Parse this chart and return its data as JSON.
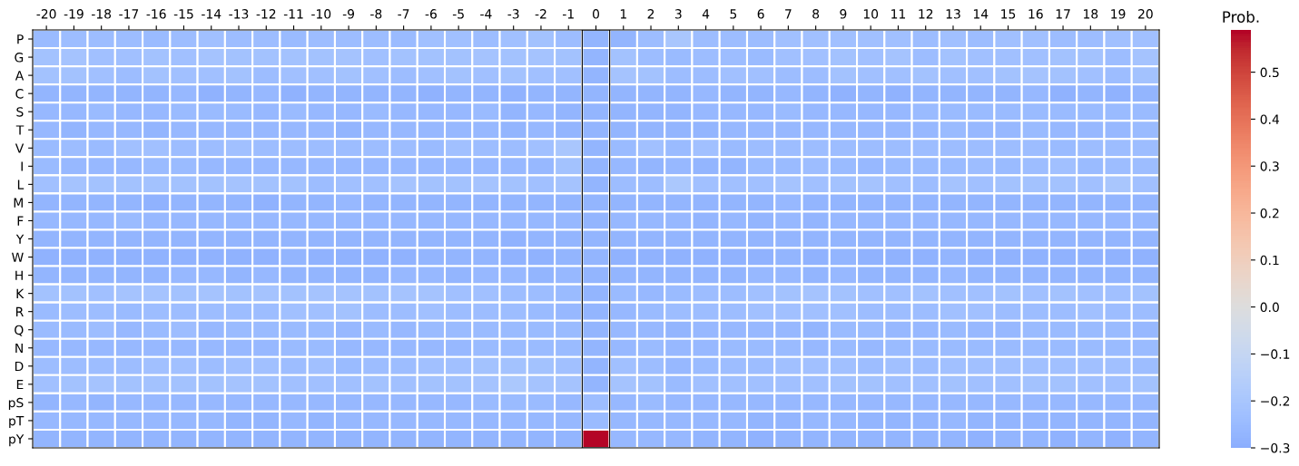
{
  "chart_data": {
    "type": "heatmap",
    "clabel": "Prob.",
    "categories": [
      "-20",
      "-19",
      "-18",
      "-17",
      "-16",
      "-15",
      "-14",
      "-13",
      "-12",
      "-11",
      "-10",
      "-9",
      "-8",
      "-7",
      "-6",
      "-5",
      "-4",
      "-3",
      "-2",
      "-1",
      "0",
      "1",
      "2",
      "3",
      "4",
      "5",
      "6",
      "7",
      "8",
      "9",
      "10",
      "11",
      "12",
      "13",
      "14",
      "15",
      "16",
      "17",
      "18",
      "19",
      "20"
    ],
    "y_categories": [
      "P",
      "G",
      "A",
      "C",
      "S",
      "T",
      "V",
      "I",
      "L",
      "M",
      "F",
      "Y",
      "W",
      "H",
      "K",
      "R",
      "Q",
      "N",
      "D",
      "E",
      "pS",
      "pT",
      "pY"
    ],
    "clim": [
      -0.3,
      0.59
    ],
    "cticks": [
      {
        "value": -0.3,
        "label": "−0.3"
      },
      {
        "value": -0.2,
        "label": "−0.2"
      },
      {
        "value": -0.1,
        "label": "−0.1"
      },
      {
        "value": 0.0,
        "label": "0.0"
      },
      0.1,
      0.2,
      0.3,
      0.4,
      0.5
    ],
    "cells": [
      [
        -0.25,
        -0.24,
        -0.24,
        -0.24,
        -0.25,
        -0.24,
        -0.23,
        -0.24,
        -0.24,
        -0.25,
        -0.24,
        -0.24,
        -0.24,
        -0.25,
        -0.23,
        -0.23,
        -0.24,
        -0.23,
        -0.22,
        -0.24,
        -0.27,
        -0.27,
        -0.24,
        -0.2,
        -0.24,
        -0.24,
        -0.24,
        -0.23,
        -0.23,
        -0.23,
        -0.23,
        -0.23,
        -0.24,
        -0.23,
        -0.24,
        -0.23,
        -0.23,
        -0.24,
        -0.24,
        -0.23,
        -0.23
      ],
      [
        -0.22,
        -0.21,
        -0.23,
        -0.23,
        -0.22,
        -0.23,
        -0.21,
        -0.22,
        -0.22,
        -0.22,
        -0.22,
        -0.21,
        -0.23,
        -0.22,
        -0.22,
        -0.22,
        -0.21,
        -0.22,
        -0.21,
        -0.22,
        -0.27,
        -0.22,
        -0.24,
        -0.25,
        -0.24,
        -0.24,
        -0.25,
        -0.23,
        -0.23,
        -0.22,
        -0.23,
        -0.21,
        -0.24,
        -0.22,
        -0.23,
        -0.23,
        -0.23,
        -0.22,
        -0.22,
        -0.24,
        -0.21
      ],
      [
        -0.22,
        -0.22,
        -0.23,
        -0.24,
        -0.22,
        -0.23,
        -0.23,
        -0.22,
        -0.24,
        -0.23,
        -0.23,
        -0.22,
        -0.23,
        -0.24,
        -0.23,
        -0.22,
        -0.23,
        -0.22,
        -0.23,
        -0.23,
        -0.27,
        -0.21,
        -0.22,
        -0.24,
        -0.24,
        -0.23,
        -0.23,
        -0.24,
        -0.24,
        -0.22,
        -0.23,
        -0.23,
        -0.22,
        -0.23,
        -0.23,
        -0.22,
        -0.21,
        -0.22,
        -0.23,
        -0.24,
        -0.22
      ],
      [
        -0.27,
        -0.27,
        -0.27,
        -0.27,
        -0.27,
        -0.26,
        -0.28,
        -0.27,
        -0.26,
        -0.28,
        -0.27,
        -0.27,
        -0.27,
        -0.27,
        -0.28,
        -0.27,
        -0.27,
        -0.28,
        -0.27,
        -0.27,
        -0.27,
        -0.27,
        -0.27,
        -0.27,
        -0.26,
        -0.27,
        -0.27,
        -0.26,
        -0.27,
        -0.28,
        -0.27,
        -0.28,
        -0.27,
        -0.27,
        -0.27,
        -0.27,
        -0.26,
        -0.28,
        -0.27,
        -0.28,
        -0.27
      ],
      [
        -0.26,
        -0.26,
        -0.25,
        -0.26,
        -0.26,
        -0.25,
        -0.25,
        -0.25,
        -0.26,
        -0.25,
        -0.26,
        -0.26,
        -0.25,
        -0.26,
        -0.26,
        -0.26,
        -0.25,
        -0.27,
        -0.26,
        -0.27,
        -0.27,
        -0.27,
        -0.27,
        -0.27,
        -0.26,
        -0.26,
        -0.26,
        -0.25,
        -0.26,
        -0.26,
        -0.26,
        -0.26,
        -0.25,
        -0.25,
        -0.25,
        -0.25,
        -0.25,
        -0.25,
        -0.25,
        -0.25,
        -0.25
      ],
      [
        -0.26,
        -0.27,
        -0.26,
        -0.26,
        -0.27,
        -0.26,
        -0.26,
        -0.26,
        -0.26,
        -0.26,
        -0.26,
        -0.27,
        -0.26,
        -0.26,
        -0.26,
        -0.26,
        -0.26,
        -0.27,
        -0.26,
        -0.27,
        -0.27,
        -0.27,
        -0.27,
        -0.27,
        -0.27,
        -0.26,
        -0.26,
        -0.26,
        -0.26,
        -0.26,
        -0.26,
        -0.26,
        -0.26,
        -0.25,
        -0.26,
        -0.26,
        -0.25,
        -0.26,
        -0.26,
        -0.26,
        -0.25
      ],
      [
        -0.25,
        -0.24,
        -0.25,
        -0.23,
        -0.23,
        -0.24,
        -0.24,
        -0.23,
        -0.24,
        -0.24,
        -0.24,
        -0.24,
        -0.24,
        -0.24,
        -0.25,
        -0.23,
        -0.24,
        -0.24,
        -0.23,
        -0.2,
        -0.27,
        -0.25,
        -0.23,
        -0.25,
        -0.23,
        -0.25,
        -0.24,
        -0.24,
        -0.24,
        -0.24,
        -0.24,
        -0.24,
        -0.24,
        -0.24,
        -0.24,
        -0.24,
        -0.24,
        -0.25,
        -0.24,
        -0.24,
        -0.24
      ],
      [
        -0.25,
        -0.26,
        -0.26,
        -0.26,
        -0.25,
        -0.25,
        -0.26,
        -0.26,
        -0.26,
        -0.26,
        -0.26,
        -0.26,
        -0.26,
        -0.26,
        -0.26,
        -0.26,
        -0.26,
        -0.26,
        -0.26,
        -0.22,
        -0.27,
        -0.26,
        -0.27,
        -0.26,
        -0.27,
        -0.27,
        -0.25,
        -0.25,
        -0.24,
        -0.25,
        -0.26,
        -0.25,
        -0.25,
        -0.25,
        -0.24,
        -0.25,
        -0.24,
        -0.23,
        -0.25,
        -0.24,
        -0.24
      ],
      [
        -0.23,
        -0.21,
        -0.22,
        -0.22,
        -0.22,
        -0.22,
        -0.22,
        -0.21,
        -0.22,
        -0.22,
        -0.24,
        -0.23,
        -0.23,
        -0.21,
        -0.22,
        -0.22,
        -0.21,
        -0.22,
        -0.23,
        -0.21,
        -0.27,
        -0.24,
        -0.24,
        -0.19,
        -0.23,
        -0.23,
        -0.23,
        -0.21,
        -0.23,
        -0.22,
        -0.21,
        -0.23,
        -0.24,
        -0.21,
        -0.23,
        -0.22,
        -0.22,
        -0.22,
        -0.23,
        -0.2,
        -0.23
      ],
      [
        -0.27,
        -0.27,
        -0.27,
        -0.27,
        -0.28,
        -0.27,
        -0.27,
        -0.27,
        -0.28,
        -0.27,
        -0.27,
        -0.26,
        -0.27,
        -0.27,
        -0.27,
        -0.27,
        -0.27,
        -0.27,
        -0.27,
        -0.27,
        -0.27,
        -0.27,
        -0.27,
        -0.27,
        -0.27,
        -0.27,
        -0.27,
        -0.26,
        -0.27,
        -0.27,
        -0.27,
        -0.27,
        -0.27,
        -0.27,
        -0.27,
        -0.27,
        -0.27,
        -0.27,
        -0.27,
        -0.27,
        -0.27
      ],
      [
        -0.26,
        -0.26,
        -0.26,
        -0.25,
        -0.26,
        -0.26,
        -0.26,
        -0.26,
        -0.26,
        -0.26,
        -0.26,
        -0.26,
        -0.26,
        -0.26,
        -0.26,
        -0.26,
        -0.26,
        -0.26,
        -0.26,
        -0.26,
        -0.27,
        -0.26,
        -0.26,
        -0.26,
        -0.27,
        -0.26,
        -0.27,
        -0.26,
        -0.27,
        -0.26,
        -0.26,
        -0.26,
        -0.26,
        -0.26,
        -0.26,
        -0.26,
        -0.26,
        -0.26,
        -0.26,
        -0.26,
        -0.26
      ],
      [
        -0.27,
        -0.27,
        -0.27,
        -0.27,
        -0.27,
        -0.27,
        -0.27,
        -0.27,
        -0.27,
        -0.27,
        -0.27,
        -0.27,
        -0.27,
        -0.27,
        -0.27,
        -0.27,
        -0.27,
        -0.28,
        -0.27,
        -0.27,
        -0.27,
        -0.27,
        -0.27,
        -0.27,
        -0.27,
        -0.27,
        -0.27,
        -0.27,
        -0.27,
        -0.27,
        -0.27,
        -0.27,
        -0.27,
        -0.27,
        -0.27,
        -0.27,
        -0.27,
        -0.27,
        -0.27,
        -0.27,
        -0.27
      ],
      [
        -0.28,
        -0.28,
        -0.28,
        -0.28,
        -0.28,
        -0.28,
        -0.28,
        -0.28,
        -0.28,
        -0.27,
        -0.28,
        -0.28,
        -0.28,
        -0.28,
        -0.27,
        -0.27,
        -0.27,
        -0.28,
        -0.28,
        -0.27,
        -0.27,
        -0.28,
        -0.28,
        -0.28,
        -0.28,
        -0.28,
        -0.28,
        -0.27,
        -0.28,
        -0.27,
        -0.28,
        -0.28,
        -0.28,
        -0.27,
        -0.28,
        -0.28,
        -0.28,
        -0.28,
        -0.28,
        -0.28,
        -0.28
      ],
      [
        -0.27,
        -0.27,
        -0.27,
        -0.27,
        -0.27,
        -0.26,
        -0.26,
        -0.27,
        -0.26,
        -0.27,
        -0.27,
        -0.27,
        -0.27,
        -0.26,
        -0.26,
        -0.27,
        -0.26,
        -0.26,
        -0.27,
        -0.26,
        -0.27,
        -0.27,
        -0.27,
        -0.27,
        -0.27,
        -0.27,
        -0.26,
        -0.26,
        -0.27,
        -0.26,
        -0.27,
        -0.27,
        -0.27,
        -0.26,
        -0.27,
        -0.27,
        -0.27,
        -0.27,
        -0.27,
        -0.27,
        -0.27
      ],
      [
        -0.22,
        -0.22,
        -0.23,
        -0.21,
        -0.21,
        -0.22,
        -0.21,
        -0.22,
        -0.21,
        -0.22,
        -0.21,
        -0.21,
        -0.22,
        -0.21,
        -0.21,
        -0.23,
        -0.23,
        -0.24,
        -0.24,
        -0.25,
        -0.27,
        -0.25,
        -0.26,
        -0.25,
        -0.24,
        -0.24,
        -0.23,
        -0.22,
        -0.21,
        -0.22,
        -0.23,
        -0.23,
        -0.22,
        -0.23,
        -0.23,
        -0.22,
        -0.23,
        -0.22,
        -0.23,
        -0.23,
        -0.22
      ],
      [
        -0.25,
        -0.24,
        -0.24,
        -0.25,
        -0.24,
        -0.24,
        -0.24,
        -0.24,
        -0.24,
        -0.23,
        -0.23,
        -0.22,
        -0.24,
        -0.24,
        -0.23,
        -0.24,
        -0.24,
        -0.24,
        -0.25,
        -0.26,
        -0.27,
        -0.26,
        -0.25,
        -0.24,
        -0.24,
        -0.24,
        -0.23,
        -0.23,
        -0.23,
        -0.23,
        -0.24,
        -0.24,
        -0.24,
        -0.23,
        -0.23,
        -0.24,
        -0.24,
        -0.24,
        -0.23,
        -0.24,
        -0.24
      ],
      [
        -0.25,
        -0.25,
        -0.24,
        -0.26,
        -0.25,
        -0.24,
        -0.26,
        -0.25,
        -0.25,
        -0.25,
        -0.25,
        -0.26,
        -0.25,
        -0.26,
        -0.25,
        -0.25,
        -0.25,
        -0.25,
        -0.25,
        -0.25,
        -0.27,
        -0.26,
        -0.26,
        -0.27,
        -0.26,
        -0.26,
        -0.26,
        -0.26,
        -0.27,
        -0.25,
        -0.25,
        -0.26,
        -0.26,
        -0.25,
        -0.26,
        -0.26,
        -0.25,
        -0.25,
        -0.25,
        -0.25,
        -0.26
      ],
      [
        -0.26,
        -0.26,
        -0.26,
        -0.26,
        -0.26,
        -0.26,
        -0.26,
        -0.26,
        -0.26,
        -0.25,
        -0.25,
        -0.26,
        -0.26,
        -0.26,
        -0.26,
        -0.26,
        -0.25,
        -0.25,
        -0.25,
        -0.25,
        -0.27,
        -0.26,
        -0.25,
        -0.26,
        -0.26,
        -0.25,
        -0.25,
        -0.25,
        -0.26,
        -0.25,
        -0.26,
        -0.25,
        -0.25,
        -0.25,
        -0.25,
        -0.25,
        -0.25,
        -0.25,
        -0.25,
        -0.25,
        -0.25
      ],
      [
        -0.24,
        -0.24,
        -0.24,
        -0.24,
        -0.23,
        -0.23,
        -0.24,
        -0.23,
        -0.23,
        -0.24,
        -0.23,
        -0.25,
        -0.24,
        -0.24,
        -0.23,
        -0.23,
        -0.22,
        -0.22,
        -0.22,
        -0.23,
        -0.27,
        -0.23,
        -0.24,
        -0.26,
        -0.25,
        -0.24,
        -0.24,
        -0.23,
        -0.23,
        -0.23,
        -0.24,
        -0.23,
        -0.24,
        -0.23,
        -0.23,
        -0.23,
        -0.23,
        -0.23,
        -0.23,
        -0.23,
        -0.24
      ],
      [
        -0.23,
        -0.22,
        -0.21,
        -0.22,
        -0.22,
        -0.22,
        -0.22,
        -0.21,
        -0.22,
        -0.23,
        -0.23,
        -0.23,
        -0.22,
        -0.23,
        -0.22,
        -0.22,
        -0.21,
        -0.19,
        -0.21,
        -0.21,
        -0.27,
        -0.21,
        -0.22,
        -0.25,
        -0.23,
        -0.23,
        -0.23,
        -0.23,
        -0.23,
        -0.22,
        -0.22,
        -0.23,
        -0.23,
        -0.22,
        -0.23,
        -0.23,
        -0.22,
        -0.22,
        -0.23,
        -0.23,
        -0.22
      ],
      [
        -0.27,
        -0.26,
        -0.27,
        -0.26,
        -0.26,
        -0.26,
        -0.26,
        -0.26,
        -0.26,
        -0.26,
        -0.26,
        -0.26,
        -0.26,
        -0.26,
        -0.26,
        -0.26,
        -0.25,
        -0.25,
        -0.25,
        -0.26,
        -0.24,
        -0.26,
        -0.25,
        -0.26,
        -0.26,
        -0.26,
        -0.26,
        -0.26,
        -0.26,
        -0.26,
        -0.26,
        -0.26,
        -0.26,
        -0.26,
        -0.26,
        -0.26,
        -0.26,
        -0.26,
        -0.26,
        -0.26,
        -0.26
      ],
      [
        -0.26,
        -0.26,
        -0.26,
        -0.26,
        -0.26,
        -0.26,
        -0.26,
        -0.27,
        -0.27,
        -0.26,
        -0.27,
        -0.26,
        -0.26,
        -0.26,
        -0.26,
        -0.26,
        -0.26,
        -0.26,
        -0.26,
        -0.26,
        -0.25,
        -0.26,
        -0.26,
        -0.26,
        -0.26,
        -0.26,
        -0.27,
        -0.27,
        -0.26,
        -0.26,
        -0.27,
        -0.27,
        -0.27,
        -0.26,
        -0.27,
        -0.27,
        -0.27,
        -0.27,
        -0.27,
        -0.27,
        -0.27
      ],
      [
        -0.27,
        -0.27,
        -0.27,
        -0.27,
        -0.27,
        -0.27,
        -0.27,
        -0.27,
        -0.27,
        -0.27,
        -0.27,
        -0.27,
        -0.27,
        -0.27,
        -0.27,
        -0.27,
        -0.27,
        -0.27,
        -0.27,
        -0.27,
        0.59,
        -0.26,
        -0.26,
        -0.26,
        -0.27,
        -0.27,
        -0.28,
        -0.27,
        -0.27,
        -0.27,
        -0.27,
        -0.27,
        -0.27,
        -0.27,
        -0.28,
        -0.27,
        -0.27,
        -0.28,
        -0.27,
        -0.28,
        -0.27
      ]
    ]
  }
}
